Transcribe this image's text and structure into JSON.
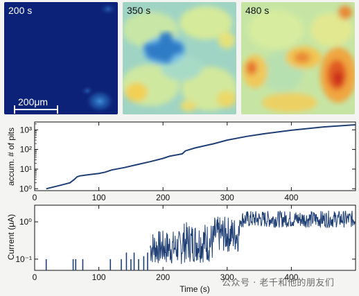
{
  "panels": [
    {
      "label": "200 s",
      "palette": "dark-blue"
    },
    {
      "label": "350 s",
      "palette": "blue-cyan-yellow"
    },
    {
      "label": "480 s",
      "palette": "yellow-orange-red"
    }
  ],
  "scale_bar": {
    "label": "200μm"
  },
  "chart_data": [
    {
      "type": "line",
      "ylabel": "accum. # of pits",
      "xlabel": "",
      "yscale": "log",
      "xlim": [
        0,
        500
      ],
      "ylim": [
        0.8,
        2500
      ],
      "xticks": [
        "0",
        "100",
        "200",
        "300",
        "400"
      ],
      "yticks": [
        "10⁰",
        "10¹",
        "10²",
        "10³"
      ],
      "color": "#1f3f74",
      "series": [
        {
          "x": [
            18,
            40,
            55,
            62,
            66,
            70,
            80,
            100,
            110,
            120,
            140,
            160,
            180,
            200,
            210,
            230,
            235,
            250,
            280,
            300,
            330,
            360,
            400,
            450,
            500
          ],
          "values": [
            1,
            1.5,
            2,
            3,
            4,
            4.5,
            5,
            6,
            7,
            9,
            12,
            17,
            24,
            35,
            45,
            60,
            85,
            120,
            200,
            300,
            460,
            650,
            950,
            1400,
            1800
          ]
        }
      ]
    },
    {
      "type": "line",
      "ylabel": "Current (μA)",
      "xlabel": "Time (s)",
      "yscale": "log",
      "xlim": [
        0,
        500
      ],
      "ylim": [
        0.05,
        2.8
      ],
      "xticks": [
        "0",
        "100",
        "200",
        "300",
        "400"
      ],
      "yticks": [
        "10⁻¹",
        "10⁰"
      ],
      "color": "#1f3f74",
      "series": [
        {
          "spikes": [
            [
              18,
              0.1
            ],
            [
              60,
              0.1
            ],
            [
              64,
              0.1
            ],
            [
              75,
              0.1
            ],
            [
              118,
              0.1
            ],
            [
              135,
              0.1
            ],
            [
              143,
              0.15
            ],
            [
              150,
              0.1
            ],
            [
              155,
              0.15
            ],
            [
              162,
              0.1
            ],
            [
              170,
              0.12
            ],
            [
              176,
              0.15
            ]
          ],
          "noisy_segments": [
            {
              "x0": 180,
              "x1": 230,
              "low": 0.07,
              "high": 0.6
            },
            {
              "x0": 230,
              "x1": 280,
              "low": 0.08,
              "high": 1.0
            },
            {
              "x0": 280,
              "x1": 320,
              "low": 0.15,
              "high": 1.4
            },
            {
              "x0": 320,
              "x1": 500,
              "low": 0.7,
              "high": 2.0
            }
          ]
        }
      ]
    }
  ],
  "watermark": "公众号 · 老千和他的朋友们"
}
